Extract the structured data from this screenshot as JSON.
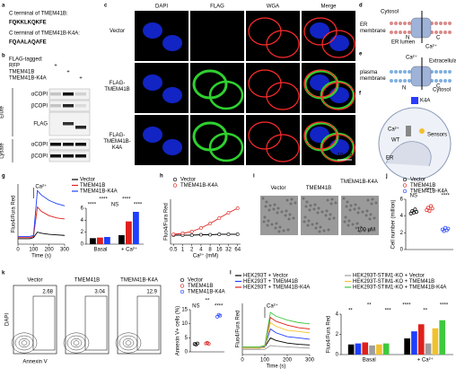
{
  "figure": {
    "panel_labels": [
      "a",
      "b",
      "c",
      "d",
      "e",
      "f",
      "g",
      "h",
      "i",
      "j",
      "k",
      "l"
    ],
    "a": {
      "line1": "C terminal of TMEM41B:",
      "seq1": "FQKKLKQKFE",
      "line2": "C terminal of TMEM41B-K4A:",
      "seq2": "FQAALAQAFE"
    },
    "b": {
      "header": "FLAG-tagged:",
      "lanes": [
        "RFP",
        "TMEM41B",
        "TMEM41B-K4A"
      ],
      "plus": [
        "+",
        "+",
        "+"
      ],
      "sections": [
        "Elute",
        "Lysate"
      ],
      "rows": [
        "αCOPI",
        "βCOPI",
        "FLAG",
        "αCOPI",
        "βCOPI"
      ]
    },
    "c": {
      "columns": [
        "DAPI",
        "FLAG",
        "WGA",
        "Merge"
      ],
      "rows": [
        "Vector",
        "FLAG-TMEM41B",
        "FLAG-TMEM41B-K4A"
      ],
      "scale": "10 μM"
    },
    "d": {
      "cytosol": "Cytosol",
      "membrane": "ER membrane",
      "lumen": "ER lumen",
      "n": "N",
      "c": "C",
      "ion": "Ca²⁺"
    },
    "e": {
      "ion": "Ca²⁺",
      "outside": "Extracellular",
      "membrane": "plasma membrane",
      "cytosol": "Cytosol",
      "n": "N",
      "c": "C"
    },
    "f": {
      "mutant": "K4A",
      "ion": "Ca²⁺",
      "wt": "WT",
      "sensors": "Sensors",
      "er": "ER"
    },
    "i": {
      "columns": [
        "Vector",
        "TMEM41B",
        "TMEM41B-K4A"
      ],
      "scale": "100 μM"
    },
    "k": {
      "columns": [
        "Vector",
        "TMEM41B",
        "TMEM41B-K4A"
      ],
      "gates": [
        "2.68",
        "3.04",
        "12.9"
      ],
      "y_axis": "DAPI",
      "x_axis": "Annexin V"
    }
  },
  "chart_data": [
    {
      "type": "line",
      "ylabel": "Fluo4/Fura Red",
      "xlabel": "Time (s)",
      "annotation": "Ca²⁺",
      "x": [
        0,
        25,
        50,
        75,
        100,
        125,
        150,
        200,
        250,
        300
      ],
      "xlim": [
        0,
        300
      ],
      "xticks": [
        0,
        100,
        200,
        300
      ],
      "ylim": [
        0.5,
        6
      ],
      "series": [
        {
          "name": "Vector",
          "color": "#000000",
          "values": [
            1,
            1,
            1,
            1,
            1.1,
            1.6,
            1.5,
            1.4,
            1.35,
            1.3
          ]
        },
        {
          "name": "TMEM41B",
          "color": "#e0201b",
          "values": [
            1.1,
            1.1,
            1.1,
            1.1,
            1.2,
            3.9,
            3.5,
            3.1,
            2.9,
            2.8
          ]
        },
        {
          "name": "TMEM41B-K4A",
          "color": "#1f3fff",
          "values": [
            1.2,
            1.2,
            1.2,
            1.2,
            1.3,
            5.4,
            5.0,
            4.5,
            4.2,
            4.0
          ]
        }
      ]
    },
    {
      "type": "bar",
      "categories": [
        "Basal",
        "+ Ca²⁺"
      ],
      "ylim": [
        0,
        6
      ],
      "yticks": [
        0,
        2,
        4,
        6
      ],
      "annotations": [
        "****",
        "****",
        "NS",
        "****",
        "****"
      ],
      "series": [
        {
          "color": "#000000",
          "values": [
            1.0,
            1.5
          ]
        },
        {
          "color": "#e0201b",
          "values": [
            1.1,
            3.8
          ]
        },
        {
          "color": "#1f3fff",
          "values": [
            1.2,
            5.4
          ]
        }
      ]
    },
    {
      "type": "line",
      "ylabel": "Fluo4/Fura Red",
      "xlabel": "Ca²⁺ (mM)",
      "xscale": "log",
      "x": [
        0.5,
        1,
        2,
        4,
        8,
        16,
        32,
        64
      ],
      "xlim": [
        0.4,
        80
      ],
      "xticks": [
        0.5,
        1,
        2,
        4,
        8,
        16,
        32,
        64
      ],
      "ylim": [
        0,
        5
      ],
      "markers": true,
      "series": [
        {
          "name": "Vector",
          "color": "#000000",
          "values": [
            1,
            1,
            1,
            1.05,
            1.05,
            1.1,
            1.1,
            1.1
          ]
        },
        {
          "name": "TMEM41B-K4A",
          "color": "#e0201b",
          "values": [
            1.1,
            1.2,
            1.4,
            1.8,
            2.3,
            2.9,
            3.5,
            4.0
          ]
        }
      ]
    },
    {
      "type": "dot",
      "ylabel": "Cell number (million)",
      "ylim": [
        0,
        6
      ],
      "yticks": [
        0,
        2,
        4,
        6
      ],
      "annotations": [
        "NS",
        "****",
        "****"
      ],
      "series": [
        {
          "name": "Vector",
          "color": "#000000",
          "values": [
            4.3,
            4.6,
            4.4,
            4.8,
            4.5
          ]
        },
        {
          "name": "TMEM41B",
          "color": "#e0201b",
          "values": [
            4.7,
            5.0,
            4.6,
            5.2,
            4.9
          ]
        },
        {
          "name": "TMEM41B-K4A",
          "color": "#1f3fff",
          "values": [
            2.4,
            2.2,
            2.6,
            2.3,
            2.5
          ]
        }
      ]
    },
    {
      "type": "dot",
      "ylabel": "Annexin V+ cells (%)",
      "ylim": [
        0,
        15
      ],
      "yticks": [
        0,
        5,
        10,
        15
      ],
      "annotations": [
        "NS",
        "**",
        "****"
      ],
      "series": [
        {
          "name": "Vector",
          "color": "#000000",
          "values": [
            2.8,
            2.6,
            3.0
          ]
        },
        {
          "name": "TMEM41B",
          "color": "#e0201b",
          "values": [
            3.0,
            3.2,
            2.9
          ]
        },
        {
          "name": "TMEM41B-K4A",
          "color": "#1f3fff",
          "values": [
            12.5,
            13.2,
            12.9
          ]
        }
      ]
    },
    {
      "type": "line",
      "ylabel": "Fluo4/Fura Red",
      "xlabel": "Time (s)",
      "annotation": "Ca²⁺",
      "x": [
        0,
        25,
        50,
        75,
        100,
        125,
        150,
        200,
        250,
        300
      ],
      "xlim": [
        0,
        300
      ],
      "xticks": [
        0,
        100,
        200,
        300
      ],
      "ylim": [
        0.5,
        4.5
      ],
      "series": [
        {
          "name": "HEK293T + Vector",
          "color": "#000000",
          "values": [
            1,
            1,
            1,
            1,
            1.1,
            1.8,
            1.6,
            1.4,
            1.3,
            1.25
          ]
        },
        {
          "name": "HEK293T + TMEM41B",
          "color": "#1f3fff",
          "values": [
            1,
            1,
            1,
            1,
            1.1,
            2.5,
            2.2,
            1.9,
            1.8,
            1.7
          ]
        },
        {
          "name": "HEK293T + TMEM41B-K4A",
          "color": "#e0201b",
          "values": [
            1.1,
            1.1,
            1.1,
            1.1,
            1.2,
            3.4,
            3.1,
            2.8,
            2.6,
            2.5
          ]
        },
        {
          "name": "HEK293T-STIM1-KO + Vector",
          "color": "#9e9e9e",
          "values": [
            0.9,
            0.9,
            0.9,
            0.9,
            0.9,
            1.2,
            1.15,
            1.1,
            1.05,
            1.0
          ]
        },
        {
          "name": "HEK293T-STIM1-KO + TMEM41B",
          "color": "#f2c12e",
          "values": [
            1,
            1,
            1,
            1,
            1.05,
            3.0,
            2.7,
            2.4,
            2.3,
            2.2
          ]
        },
        {
          "name": "HEK293T-STIM1-KO + TMEM41B-K4A",
          "color": "#3ec93e",
          "values": [
            1.1,
            1.1,
            1.1,
            1.1,
            1.2,
            3.8,
            3.5,
            3.2,
            3.0,
            2.9
          ]
        }
      ]
    },
    {
      "type": "bar",
      "ylabel": "Fluo4/Fura Red",
      "categories": [
        "Basal",
        "+ Ca²⁺"
      ],
      "ylim": [
        0,
        4
      ],
      "yticks": [
        0,
        2,
        4
      ],
      "annotations": [
        "**",
        "**",
        "***",
        "****",
        "**",
        "****"
      ],
      "series": [
        {
          "color": "#000000",
          "values": [
            1.0,
            1.6
          ]
        },
        {
          "color": "#1f3fff",
          "values": [
            1.1,
            2.3
          ]
        },
        {
          "color": "#e0201b",
          "values": [
            1.2,
            3.0
          ]
        },
        {
          "color": "#9e9e9e",
          "values": [
            0.9,
            1.1
          ]
        },
        {
          "color": "#f2c12e",
          "values": [
            1.0,
            2.6
          ]
        },
        {
          "color": "#3ec93e",
          "values": [
            1.1,
            3.4
          ]
        }
      ]
    }
  ]
}
